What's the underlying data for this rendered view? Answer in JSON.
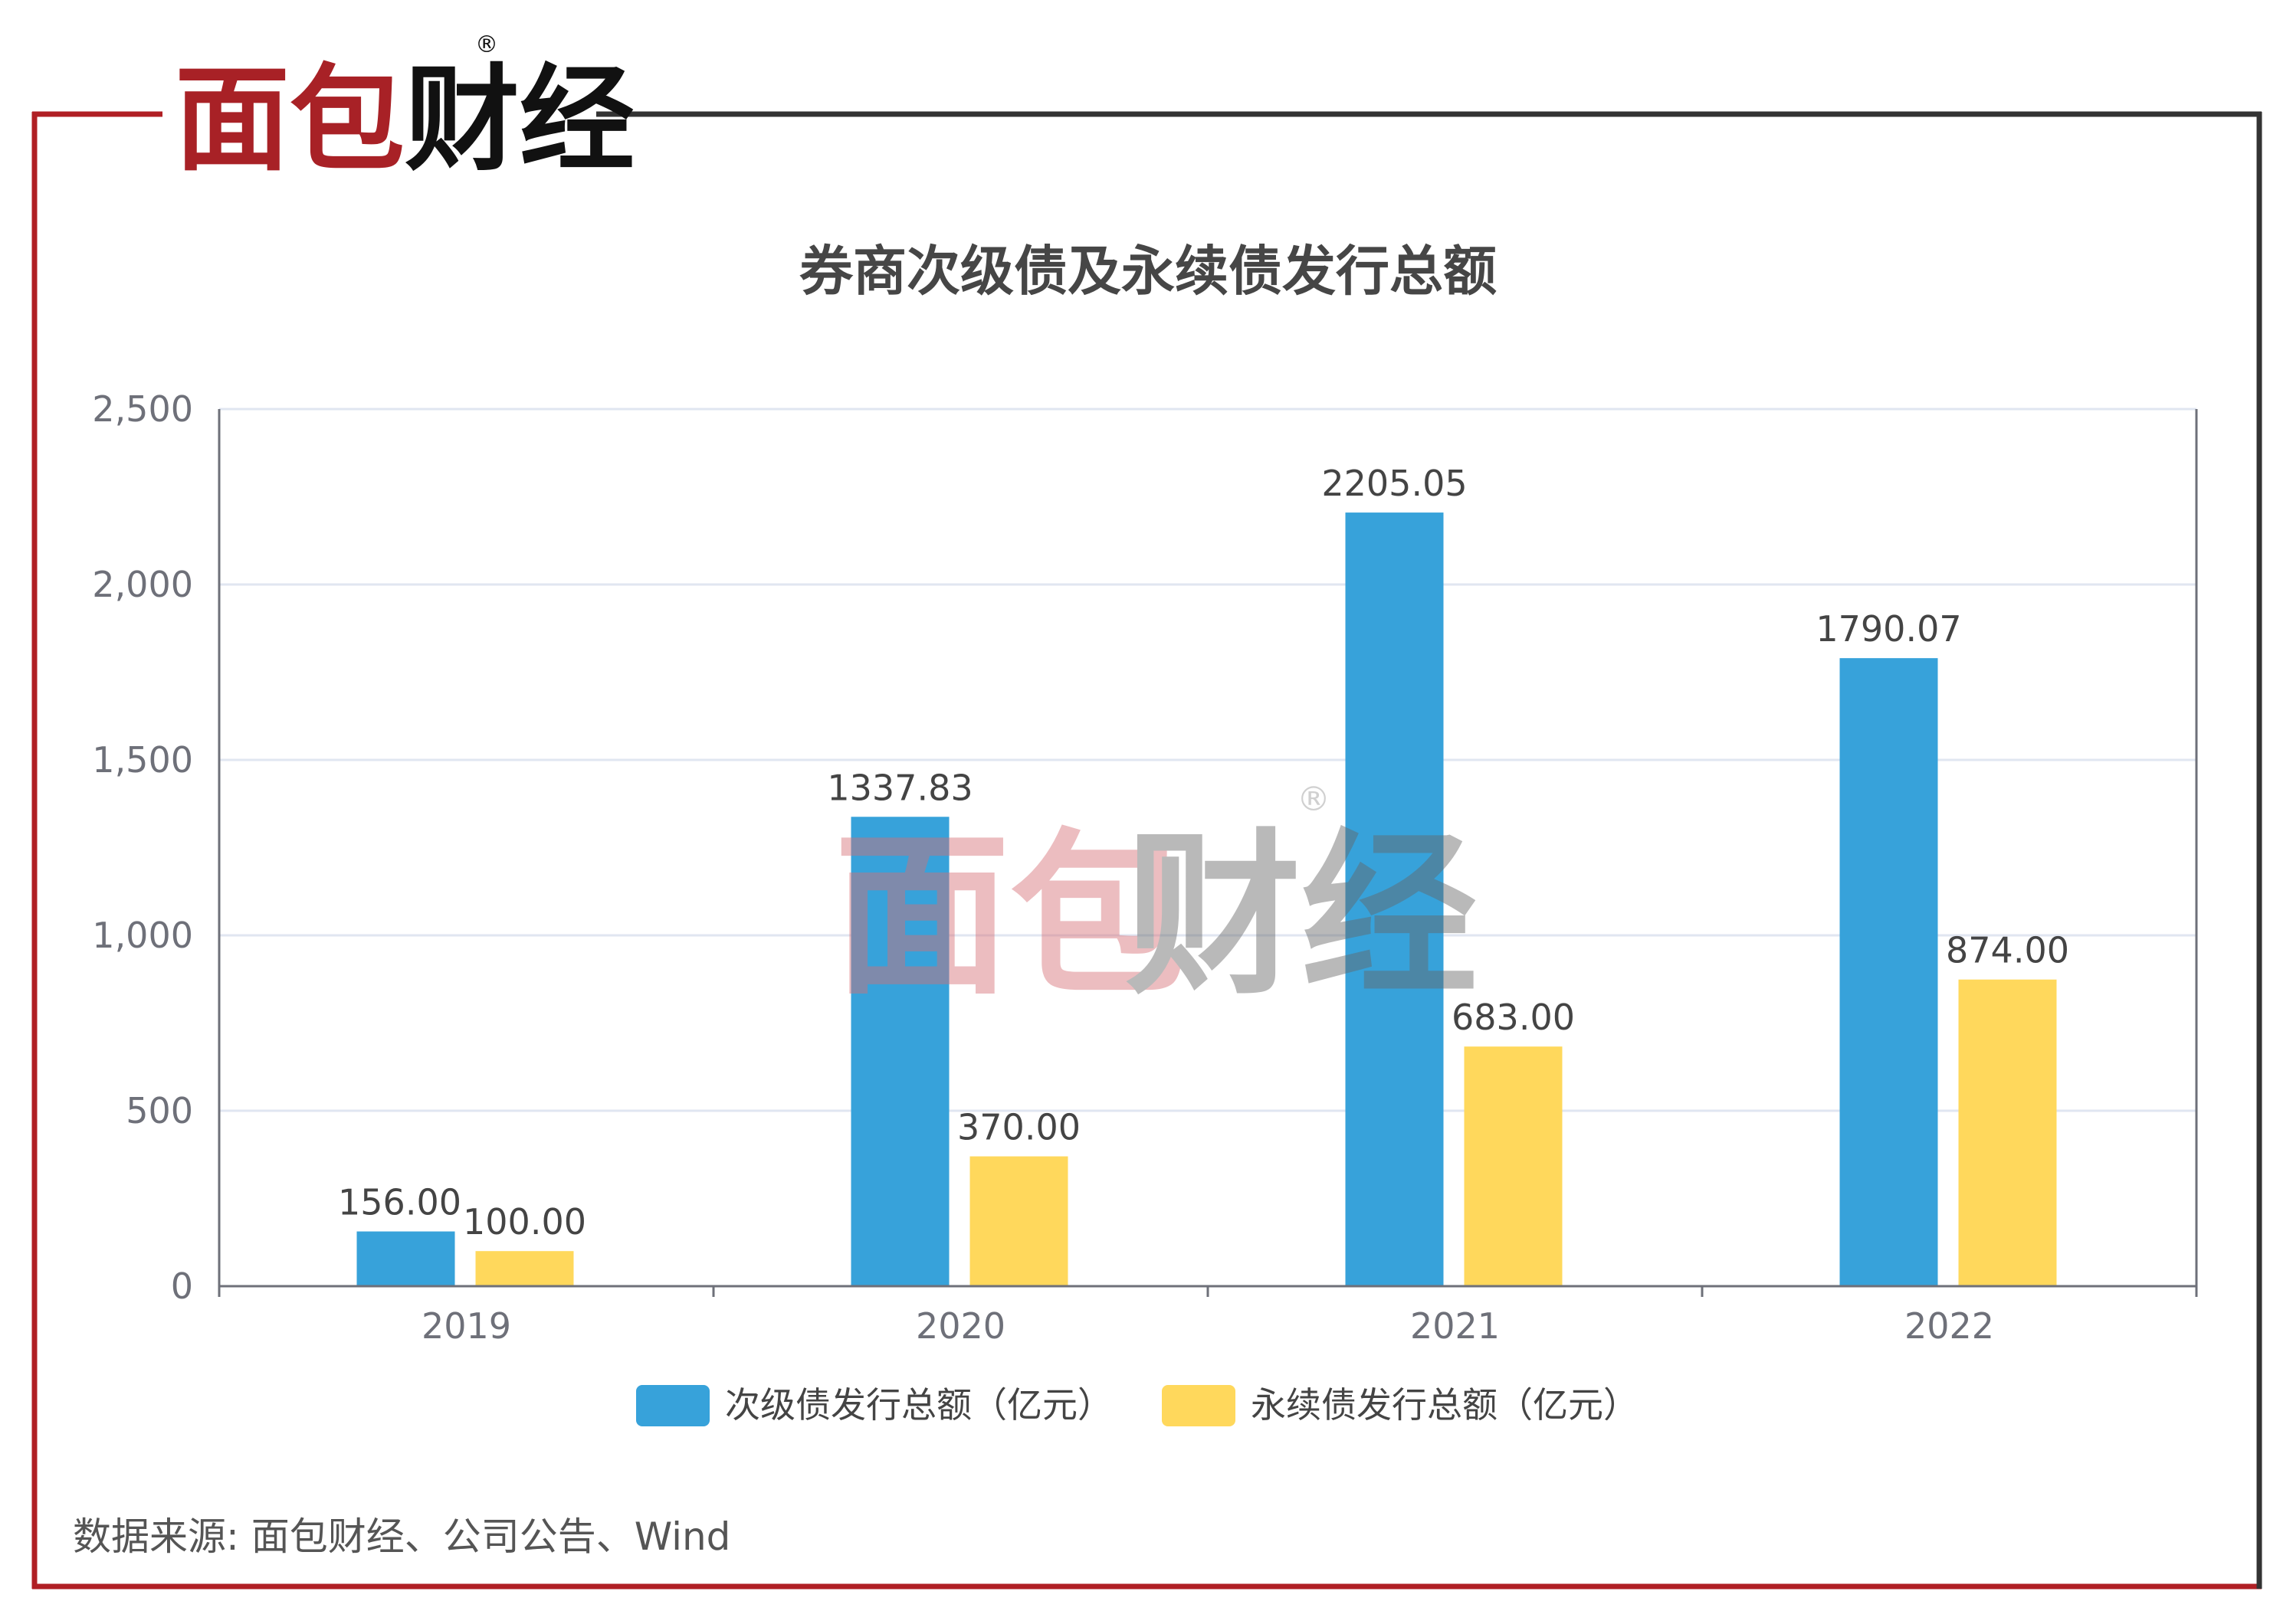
{
  "brand": {
    "logo_text_red": "面包",
    "logo_text_black": "财经",
    "registered": "®"
  },
  "watermark": {
    "text_red": "面包",
    "text_gray": "财经",
    "registered": "®"
  },
  "source": "数据来源: 面包财经、公司公告、Wind",
  "colors": {
    "blue": "#37a2da",
    "yellow": "#ffd85c",
    "frame_red": "#b01f24",
    "frame_dark": "#333333"
  },
  "chart_data": {
    "type": "bar",
    "title": "券商次级债及永续债发行总额",
    "categories": [
      "2019",
      "2020",
      "2021",
      "2022"
    ],
    "series": [
      {
        "name": "次级债发行总额（亿元）",
        "values": [
          156.0,
          1337.83,
          2205.05,
          1790.07
        ],
        "labels": [
          "156.00",
          "1337.83",
          "2205.05",
          "1790.07"
        ],
        "color": "#37a2da"
      },
      {
        "name": "永续债发行总额（亿元）",
        "values": [
          100.0,
          370.0,
          683.0,
          874.0
        ],
        "labels": [
          "100.00",
          "370.00",
          "683.00",
          "874.00"
        ],
        "color": "#ffd85c"
      }
    ],
    "ylim": [
      0,
      2500
    ],
    "yticks": [
      0,
      500,
      1000,
      1500,
      2000,
      2500
    ],
    "ytick_labels": [
      "0",
      "500",
      "1,000",
      "1,500",
      "2,000",
      "2,500"
    ],
    "grid": true,
    "legend": "bottom-center",
    "xlabel": "",
    "ylabel": ""
  }
}
